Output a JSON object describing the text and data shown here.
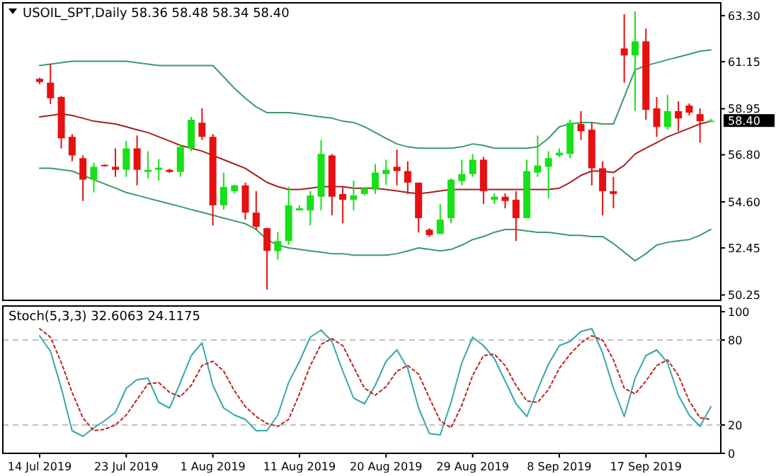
{
  "chart_data": [
    {
      "type": "candlestick",
      "title": "USOIL_SPT,Daily  58.36 58.48 58.34 58.40",
      "tick_labels": "y",
      "categories": [
        null,
        null,
        null,
        null,
        null,
        null,
        null,
        null,
        null,
        null,
        null,
        null,
        null,
        null,
        null,
        null,
        null,
        null,
        null,
        null,
        null,
        null,
        null,
        null,
        null,
        null,
        null,
        null,
        null,
        null,
        null,
        null,
        null,
        null,
        null,
        null,
        null,
        null,
        null,
        null,
        null,
        null,
        null,
        null,
        null,
        null,
        null,
        null,
        null,
        null,
        null,
        null,
        null,
        null,
        null,
        null,
        null,
        null,
        null,
        null,
        null,
        null,
        null
      ],
      "ylim": [
        50.0,
        63.9
      ],
      "yticks": [
        50.25,
        52.45,
        {
          "value": 54.6,
          "label": "54.60"
        },
        {
          "value": 56.8,
          "label": "56.80"
        },
        58.95,
        61.15,
        {
          "value": 63.3,
          "label": "63.30"
        }
      ],
      "annotations": [
        "58.40"
      ],
      "series": [
        {
          "ohlc": [
            [
              60.35,
              60.4,
              60.1,
              60.2
            ],
            [
              60.17,
              61.04,
              59.17,
              59.44
            ],
            [
              59.5,
              59.55,
              57.1,
              57.57
            ],
            [
              57.64,
              57.77,
              56.5,
              56.77
            ],
            [
              56.64,
              56.77,
              54.64,
              55.64
            ],
            [
              55.64,
              56.44,
              55.04,
              56.24
            ],
            [
              56.33,
              56.35,
              56.25,
              56.28
            ],
            [
              56.24,
              57.1,
              55.77,
              56.1
            ],
            [
              56.1,
              57.44,
              55.77,
              57.1
            ],
            [
              57.1,
              57.7,
              55.37,
              56.1
            ],
            [
              56.0,
              56.97,
              55.7,
              56.1
            ],
            [
              56.1,
              56.6,
              55.6,
              56.2
            ],
            [
              56.1,
              56.15,
              55.95,
              56.0
            ],
            [
              56.0,
              57.3,
              55.77,
              57.17
            ],
            [
              57.1,
              58.57,
              56.97,
              58.44
            ],
            [
              58.3,
              58.97,
              57.5,
              57.64
            ],
            [
              57.64,
              57.77,
              53.5,
              54.44
            ],
            [
              54.44,
              55.97,
              54.24,
              55.3
            ],
            [
              55.1,
              55.4,
              55.0,
              55.37
            ],
            [
              55.37,
              55.5,
              53.77,
              54.1
            ],
            [
              54.1,
              55.1,
              53.3,
              53.44
            ],
            [
              53.37,
              53.4,
              50.5,
              52.31
            ],
            [
              52.3,
              53.2,
              51.9,
              52.77
            ],
            [
              52.77,
              55.3,
              52.6,
              54.44
            ],
            [
              54.2,
              54.44,
              54.2,
              54.3
            ],
            [
              54.2,
              55.1,
              53.5,
              54.9
            ],
            [
              54.84,
              57.5,
              54.2,
              56.84
            ],
            [
              56.77,
              56.84,
              53.97,
              54.84
            ],
            [
              54.97,
              55.3,
              53.6,
              54.7
            ],
            [
              54.7,
              55.6,
              54.2,
              54.9
            ],
            [
              54.97,
              55.3,
              54.9,
              55.24
            ],
            [
              55.17,
              56.37,
              54.97,
              55.97
            ],
            [
              55.9,
              56.57,
              55.4,
              56.1
            ],
            [
              56.24,
              57.04,
              55.37,
              56.04
            ],
            [
              56.04,
              56.5,
              54.97,
              55.5
            ],
            [
              55.5,
              55.5,
              53.17,
              53.84
            ],
            [
              53.3,
              53.37,
              52.97,
              53.05
            ],
            [
              53.1,
              54.5,
              53.1,
              53.77
            ],
            [
              53.84,
              55.7,
              53.6,
              55.64
            ],
            [
              55.57,
              56.57,
              55.37,
              55.9
            ],
            [
              55.9,
              56.84,
              55.77,
              56.57
            ],
            [
              56.57,
              56.7,
              54.5,
              55.1
            ],
            [
              54.7,
              55.0,
              54.5,
              54.84
            ],
            [
              54.84,
              55.0,
              54.3,
              54.64
            ],
            [
              54.7,
              55.1,
              52.77,
              53.84
            ],
            [
              53.84,
              56.57,
              53.84,
              56.04
            ],
            [
              55.97,
              57.7,
              55.77,
              56.3
            ],
            [
              56.24,
              56.97,
              54.77,
              56.64
            ],
            [
              56.77,
              57.1,
              56.7,
              56.9
            ],
            [
              56.84,
              58.44,
              56.64,
              58.3
            ],
            [
              58.24,
              58.84,
              57.5,
              57.9
            ],
            [
              57.97,
              58.3,
              55.37,
              56.17
            ],
            [
              56.17,
              56.5,
              53.97,
              55.1
            ],
            [
              55.1,
              55.77,
              54.3,
              54.97
            ],
            [
              61.77,
              63.37,
              60.17,
              61.44
            ],
            [
              61.44,
              63.5,
              58.84,
              62.1
            ],
            [
              62.1,
              62.7,
              58.44,
              58.9
            ],
            [
              58.97,
              59.5,
              57.64,
              58.1
            ],
            [
              58.1,
              59.6,
              57.97,
              58.84
            ],
            [
              58.84,
              59.3,
              57.9,
              58.5
            ],
            [
              59.1,
              59.2,
              58.64,
              58.77
            ],
            [
              58.7,
              58.97,
              57.37,
              58.37
            ],
            [
              58.36,
              58.48,
              58.34,
              58.4
            ]
          ],
          "colors": [
            "#e61010",
            "#e61010",
            "#e61010",
            "#e61010",
            "#e61010",
            "#18e018",
            "#e61010",
            "#e61010",
            "#18e018",
            "#e61010",
            "#18e018",
            "#18e018",
            "#e61010",
            "#18e018",
            "#18e018",
            "#e61010",
            "#e61010",
            "#18e018",
            "#18e018",
            "#e61010",
            "#e61010",
            "#e61010",
            "#18e018",
            "#18e018",
            "#18e018",
            "#18e018",
            "#18e018",
            "#e61010",
            "#e61010",
            "#18e018",
            "#18e018",
            "#18e018",
            "#18e018",
            "#e61010",
            "#e61010",
            "#e61010",
            "#e61010",
            "#18e018",
            "#18e018",
            "#18e018",
            "#18e018",
            "#e61010",
            "#18e018",
            "#e61010",
            "#e61010",
            "#18e018",
            "#18e018",
            "#18e018",
            "#18e018",
            "#18e018",
            "#e61010",
            "#e61010",
            "#e61010",
            "#e61010",
            "#e61010",
            "#18e018",
            "#e61010",
            "#e61010",
            "#18e018",
            "#e61010",
            "#e61010",
            "#e61010",
            "#18e018"
          ]
        },
        {
          "type": "line",
          "color": "#3c9a6a",
          "values": [
            60.97,
            61.04,
            61.1,
            61.17,
            61.17,
            61.17,
            61.17,
            61.17,
            61.17,
            61.1,
            61.04,
            60.97,
            60.97,
            60.97,
            60.97,
            60.97,
            60.97,
            60.44,
            59.9,
            59.44,
            59.04,
            58.77,
            58.77,
            58.77,
            58.71,
            58.64,
            58.57,
            58.51,
            58.37,
            58.31,
            58.11,
            57.84,
            57.57,
            57.31,
            57.17,
            57.11,
            57.11,
            57.11,
            57.11,
            57.17,
            57.31,
            57.24,
            57.11,
            57.11,
            57.11,
            57.11,
            57.17,
            57.57,
            58.11,
            58.24,
            58.31,
            58.31,
            58.24,
            58.24,
            59.5,
            60.77,
            60.97,
            61.1,
            61.24,
            61.37,
            61.5,
            61.64,
            61.7
          ]
        },
        {
          "type": "line",
          "color": "#a52020",
          "values": [
            58.57,
            58.64,
            58.71,
            58.64,
            58.51,
            58.37,
            58.31,
            58.24,
            58.11,
            57.97,
            57.84,
            57.64,
            57.44,
            57.24,
            57.11,
            56.97,
            56.77,
            56.57,
            56.37,
            56.17,
            55.84,
            55.51,
            55.31,
            55.18,
            55.18,
            55.24,
            55.31,
            55.31,
            55.31,
            55.24,
            55.24,
            55.24,
            55.18,
            55.11,
            55.04,
            54.98,
            55.04,
            55.11,
            55.18,
            55.18,
            55.18,
            55.18,
            55.18,
            55.18,
            55.18,
            55.18,
            55.18,
            55.18,
            55.24,
            55.51,
            55.84,
            56.04,
            56.04,
            55.97,
            56.31,
            56.84,
            57.11,
            57.37,
            57.64,
            57.84,
            58.04,
            58.24,
            58.37
          ]
        },
        {
          "type": "line",
          "color": "#3c9a6a",
          "values": [
            56.17,
            56.17,
            56.11,
            56.04,
            55.84,
            55.64,
            55.44,
            55.24,
            55.04,
            54.91,
            54.77,
            54.64,
            54.51,
            54.38,
            54.24,
            54.11,
            53.98,
            53.84,
            53.71,
            53.58,
            53.31,
            52.84,
            52.58,
            52.45,
            52.38,
            52.31,
            52.25,
            52.18,
            52.18,
            52.11,
            52.11,
            52.11,
            52.11,
            52.18,
            52.31,
            52.45,
            52.38,
            52.31,
            52.38,
            52.58,
            52.84,
            52.98,
            53.18,
            53.31,
            53.31,
            53.24,
            53.18,
            53.18,
            53.11,
            53.04,
            53.04,
            52.98,
            52.98,
            52.65,
            52.25,
            51.85,
            52.18,
            52.58,
            52.71,
            52.78,
            52.84,
            53.04,
            53.31
          ]
        }
      ]
    },
    {
      "type": "line",
      "title": "Stoch(5,3,3) 32.6063 24.1175",
      "categories": [
        "14 Jul 2019",
        null,
        null,
        null,
        null,
        null,
        null,
        null,
        "23 Jul 2019",
        null,
        null,
        null,
        null,
        null,
        null,
        null,
        "1 Aug 2019",
        null,
        null,
        null,
        null,
        null,
        null,
        null,
        "11 Aug 2019",
        null,
        null,
        null,
        null,
        null,
        null,
        null,
        "20 Aug 2019",
        null,
        null,
        null,
        null,
        null,
        null,
        null,
        "29 Aug 2019",
        null,
        null,
        null,
        null,
        null,
        null,
        null,
        "8 Sep 2019",
        null,
        null,
        null,
        null,
        null,
        null,
        null,
        "17 Sep 2019",
        null,
        null,
        null,
        null,
        null,
        null
      ],
      "ylim": [
        0,
        104
      ],
      "yticks": [
        0,
        20,
        80,
        100
      ],
      "ref_lines": [
        {
          "axis": "y",
          "value": 80,
          "color": "#c0c0c0",
          "line_style": "dashed"
        },
        {
          "axis": "y",
          "value": 20,
          "color": "#c0c0c0",
          "line_style": "dashed"
        }
      ],
      "series": [
        {
          "color": "#3aa6a6",
          "line_style": "solid",
          "values": [
            83,
            72,
            46,
            16,
            12,
            18,
            23,
            29,
            46,
            52,
            53,
            36,
            32,
            50,
            69,
            78,
            48,
            32,
            27,
            24,
            16,
            16,
            27,
            50,
            65,
            82,
            87,
            79,
            58,
            39,
            35,
            48,
            65,
            73,
            60,
            32,
            14,
            13,
            36,
            64,
            82,
            76,
            67,
            51,
            35,
            26,
            45,
            63,
            76,
            79,
            86,
            88,
            71,
            46,
            26,
            53,
            69,
            73,
            64,
            41,
            27,
            19,
            33
          ]
        },
        {
          "color": "#c02020",
          "line_style": "dotted",
          "values": [
            88,
            82,
            64,
            43,
            25,
            16,
            17,
            20,
            27,
            38,
            49,
            50,
            43,
            40,
            48,
            62,
            65,
            58,
            44,
            33,
            26,
            21,
            19,
            24,
            42,
            62,
            77,
            81,
            76,
            61,
            46,
            41,
            47,
            58,
            62,
            56,
            39,
            23,
            18,
            34,
            55,
            69,
            70,
            62,
            48,
            37,
            36,
            45,
            60,
            70,
            78,
            83,
            80,
            66,
            46,
            42,
            51,
            62,
            66,
            55,
            37,
            25,
            24
          ]
        }
      ]
    }
  ]
}
